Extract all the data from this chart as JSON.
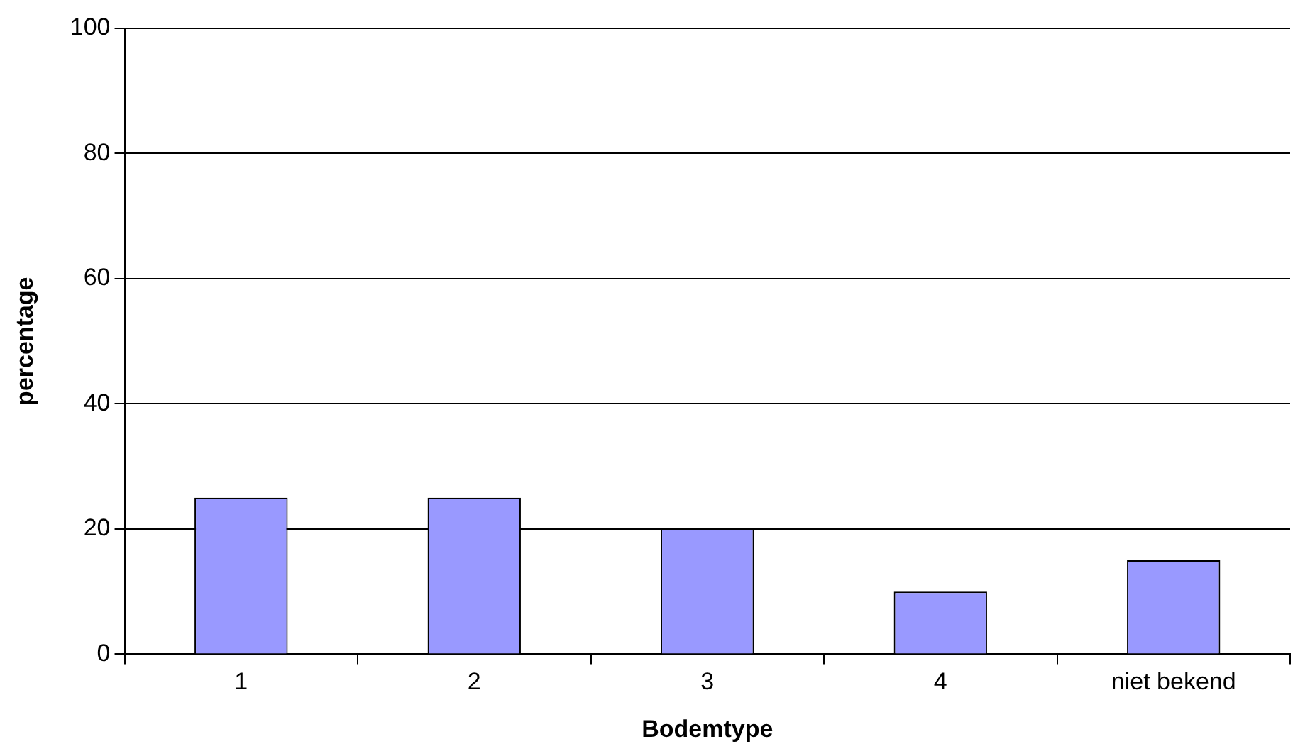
{
  "chart_data": {
    "type": "bar",
    "xlabel": "Bodemtype",
    "ylabel": "percentage",
    "categories": [
      "1",
      "2",
      "3",
      "4",
      "niet bekend"
    ],
    "values": [
      25,
      25,
      20,
      10,
      15
    ],
    "color": "#9999ff",
    "ylim": [
      0,
      100
    ],
    "yticks": [
      0,
      20,
      40,
      60,
      80,
      100
    ],
    "grid": "y",
    "legend": false
  }
}
